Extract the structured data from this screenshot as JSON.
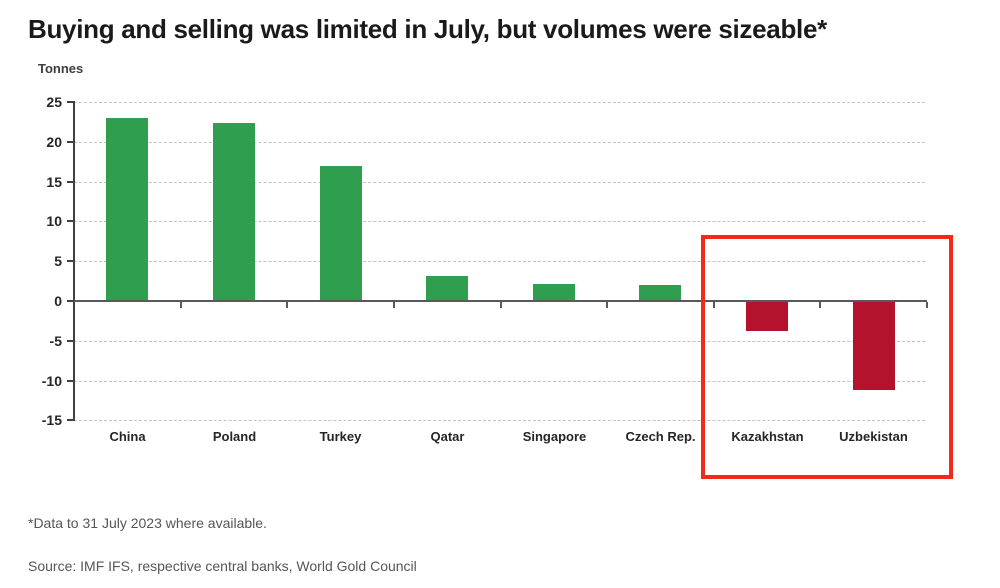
{
  "title": "Buying and selling was limited in July, but volumes were sizeable*",
  "footnote": "*Data to 31 July 2023 where available.",
  "source": "Source: IMF IFS, respective central banks, World Gold Council",
  "chart_data": {
    "type": "bar",
    "title": "Buying and selling was limited in July, but volumes were sizeable*",
    "xlabel": "",
    "ylabel": "Tonnes",
    "categories": [
      "China",
      "Poland",
      "Turkey",
      "Qatar",
      "Singapore",
      "Czech Rep.",
      "Kazakhstan",
      "Uzbekistan"
    ],
    "values": [
      23,
      22.4,
      17,
      3.2,
      2.1,
      2,
      -3.8,
      -11.2
    ],
    "ylim": [
      -15,
      25
    ],
    "yticks": [
      25,
      20,
      15,
      10,
      5,
      0,
      -5,
      -10,
      -15
    ],
    "grid": "horizontal-dashed",
    "legend": "none",
    "positive_color": "#2f9e4e",
    "negative_color": "#b5122d",
    "highlight": {
      "categories": [
        "Kazakhstan",
        "Uzbekistan"
      ],
      "border_color": "#f4291c",
      "note": "red box drawn around the two selling countries"
    }
  }
}
